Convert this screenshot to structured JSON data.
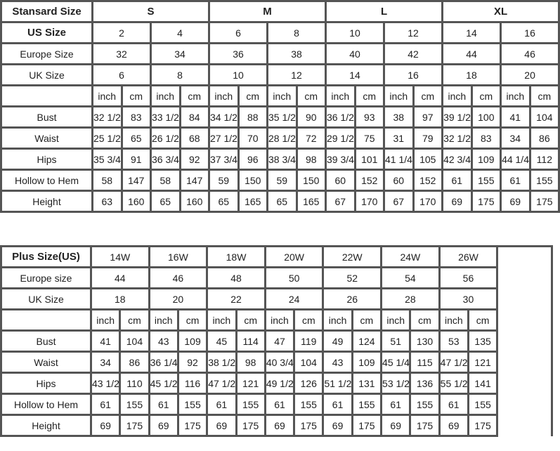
{
  "standard": {
    "header_label": "Stansard Size",
    "us_label": "US Size",
    "europe_label": "Europe Size",
    "uk_label": "UK Size",
    "unit_labels": [
      "inch",
      "cm"
    ],
    "groups": [
      "S",
      "M",
      "L",
      "XL"
    ],
    "us": [
      "2",
      "4",
      "6",
      "8",
      "10",
      "12",
      "14",
      "16"
    ],
    "europe": [
      "32",
      "34",
      "36",
      "38",
      "40",
      "42",
      "44",
      "46"
    ],
    "uk": [
      "6",
      "8",
      "10",
      "12",
      "14",
      "16",
      "18",
      "20"
    ],
    "rows": [
      {
        "label": "Bust",
        "values": [
          "32 1/2",
          "83",
          "33 1/2",
          "84",
          "34 1/2",
          "88",
          "35 1/2",
          "90",
          "36 1/2",
          "93",
          "38",
          "97",
          "39 1/2",
          "100",
          "41",
          "104"
        ]
      },
      {
        "label": "Waist",
        "values": [
          "25 1/2",
          "65",
          "26 1/2",
          "68",
          "27 1/2",
          "70",
          "28 1/2",
          "72",
          "29 1/2",
          "75",
          "31",
          "79",
          "32 1/2",
          "83",
          "34",
          "86"
        ]
      },
      {
        "label": "Hips",
        "values": [
          "35 3/4",
          "91",
          "36 3/4",
          "92",
          "37 3/4",
          "96",
          "38 3/4",
          "98",
          "39 3/4",
          "101",
          "41 1/4",
          "105",
          "42 3/4",
          "109",
          "44 1/4",
          "112"
        ]
      },
      {
        "label": "Hollow to Hem",
        "values": [
          "58",
          "147",
          "58",
          "147",
          "59",
          "150",
          "59",
          "150",
          "60",
          "152",
          "60",
          "152",
          "61",
          "155",
          "61",
          "155"
        ]
      },
      {
        "label": "Height",
        "values": [
          "63",
          "160",
          "65",
          "160",
          "65",
          "165",
          "65",
          "165",
          "67",
          "170",
          "67",
          "170",
          "69",
          "175",
          "69",
          "175"
        ]
      }
    ]
  },
  "plus": {
    "header_label": "Plus Size(US)",
    "europe_label": "Europe size",
    "uk_label": "UK Size",
    "unit_labels": [
      "inch",
      "cm"
    ],
    "us": [
      "14W",
      "16W",
      "18W",
      "20W",
      "22W",
      "24W",
      "26W"
    ],
    "europe": [
      "44",
      "46",
      "48",
      "50",
      "52",
      "54",
      "56"
    ],
    "uk": [
      "18",
      "20",
      "22",
      "24",
      "26",
      "28",
      "30"
    ],
    "rows": [
      {
        "label": "Bust",
        "values": [
          "41",
          "104",
          "43",
          "109",
          "45",
          "114",
          "47",
          "119",
          "49",
          "124",
          "51",
          "130",
          "53",
          "135"
        ]
      },
      {
        "label": "Waist",
        "values": [
          "34",
          "86",
          "36 1/4",
          "92",
          "38 1/2",
          "98",
          "40 3/4",
          "104",
          "43",
          "109",
          "45 1/4",
          "115",
          "47 1/2",
          "121"
        ]
      },
      {
        "label": "Hips",
        "values": [
          "43 1/2",
          "110",
          "45 1/2",
          "116",
          "47 1/2",
          "121",
          "49 1/2",
          "126",
          "51 1/2",
          "131",
          "53 1/2",
          "136",
          "55 1/2",
          "141"
        ]
      },
      {
        "label": "Hollow to Hem",
        "values": [
          "61",
          "155",
          "61",
          "155",
          "61",
          "155",
          "61",
          "155",
          "61",
          "155",
          "61",
          "155",
          "61",
          "155"
        ]
      },
      {
        "label": "Height",
        "values": [
          "69",
          "175",
          "69",
          "175",
          "69",
          "175",
          "69",
          "175",
          "69",
          "175",
          "69",
          "175",
          "69",
          "175"
        ]
      }
    ]
  }
}
